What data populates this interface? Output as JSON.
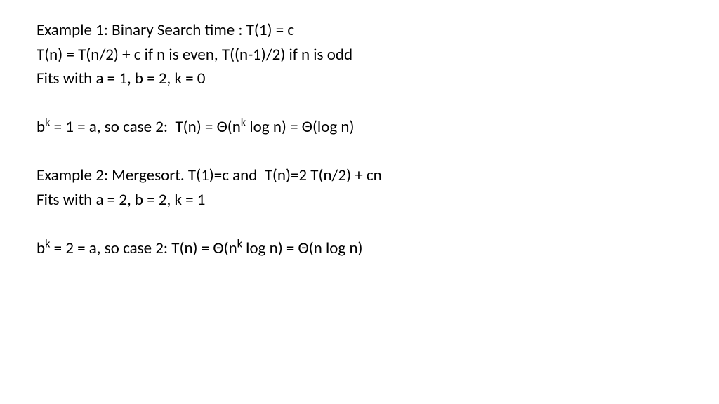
{
  "slide": {
    "background_color": "#ffffff",
    "text_color": "#000000",
    "font_family": "Calibri",
    "font_size_pt": 18,
    "lines": [
      {
        "type": "text",
        "html": "Example 1: Binary Search time : T(1) = c"
      },
      {
        "type": "text",
        "html": "T(n) = T(n/2) + c if n is even, T((n-1)/2) if n is odd"
      },
      {
        "type": "text",
        "html": "Fits with a = 1, b = 2, k = 0"
      },
      {
        "type": "blank"
      },
      {
        "type": "text",
        "html": "b<sup>k</sup> = 1 = a, so case 2:  T(n) = Θ(n<sup>k</sup> log n) = Θ(log n)"
      },
      {
        "type": "blank"
      },
      {
        "type": "text",
        "html": "Example 2: Mergesort. T(1)=c and  T(n)=2 T(n/2) + cn"
      },
      {
        "type": "text",
        "html": "Fits with a = 2, b = 2, k = 1"
      },
      {
        "type": "blank"
      },
      {
        "type": "text",
        "html": "b<sup>k</sup> = 2 = a, so case 2: T(n) = Θ(n<sup>k</sup> log n) = Θ(n log n)"
      }
    ]
  }
}
